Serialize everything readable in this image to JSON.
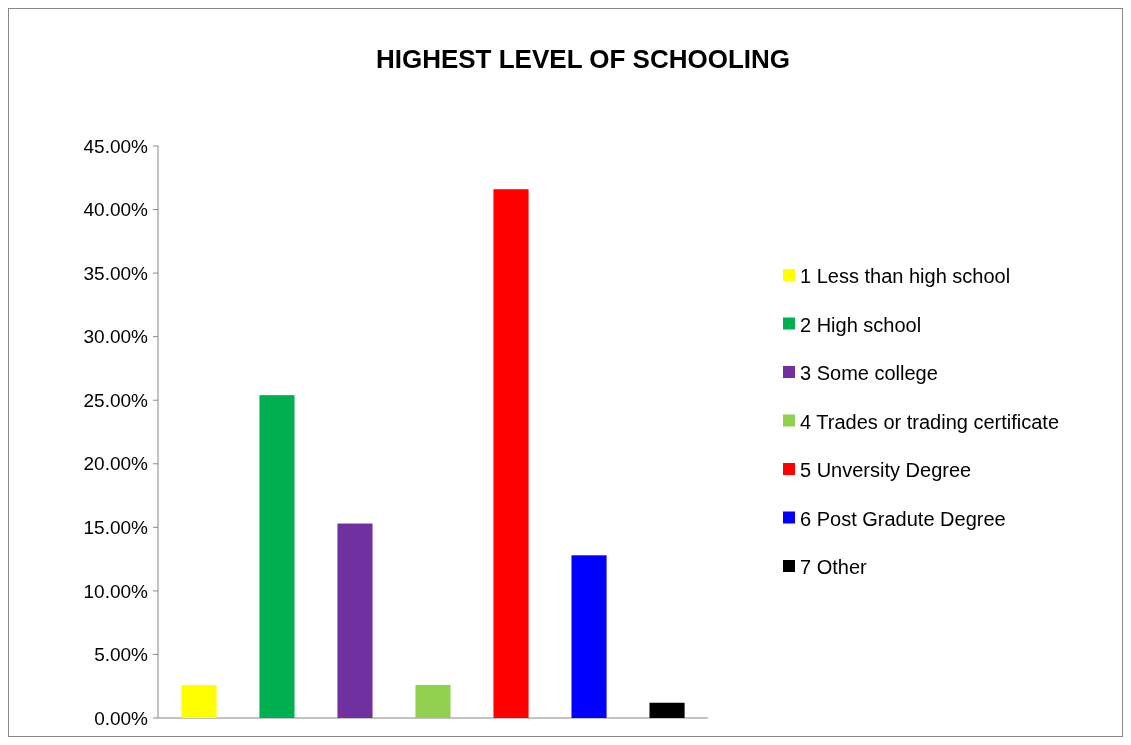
{
  "chart_data": {
    "type": "bar",
    "title": "HIGHEST LEVEL OF SCHOOLING",
    "categories": [
      null,
      null,
      null,
      null,
      null,
      null,
      null
    ],
    "series": [
      {
        "name": "1 Less than high school",
        "color": "#ffff00",
        "values": [
          2.6,
          null,
          null,
          null,
          null,
          null,
          null
        ]
      },
      {
        "name": "2 High school",
        "color": "#00b050",
        "values": [
          null,
          25.4,
          null,
          null,
          null,
          null,
          null
        ]
      },
      {
        "name": "3 Some college",
        "color": "#7030a0",
        "values": [
          null,
          null,
          15.3,
          null,
          null,
          null,
          null
        ]
      },
      {
        "name": "4 Trades or trading certificate",
        "color": "#92d050",
        "values": [
          null,
          null,
          null,
          2.6,
          null,
          null,
          null
        ]
      },
      {
        "name": "5 Unversity Degree",
        "color": "#ff0000",
        "values": [
          null,
          null,
          null,
          null,
          41.6,
          null,
          null
        ]
      },
      {
        "name": "6 Post Gradute Degree",
        "color": "#0000ff",
        "values": [
          null,
          null,
          null,
          null,
          null,
          12.8,
          null
        ]
      },
      {
        "name": "7 Other",
        "color": "#000000",
        "values": [
          null,
          null,
          null,
          null,
          null,
          null,
          1.2
        ]
      }
    ],
    "ylim": [
      0,
      45
    ],
    "yticks": [
      {
        "value": 0,
        "label": "0.00%"
      },
      {
        "value": 5,
        "label": "5.00%"
      },
      {
        "value": 10,
        "label": "10.00%"
      },
      {
        "value": 15,
        "label": "15.00%"
      },
      {
        "value": 20,
        "label": "20.00%"
      },
      {
        "value": 25,
        "label": "25.00%"
      },
      {
        "value": 30,
        "label": "30.00%"
      },
      {
        "value": 35,
        "label": "35.00%"
      },
      {
        "value": 40,
        "label": "40.00%"
      },
      {
        "value": 45,
        "label": "45.00%"
      }
    ],
    "tick_labels": "y",
    "legend": "right",
    "grid": false
  }
}
